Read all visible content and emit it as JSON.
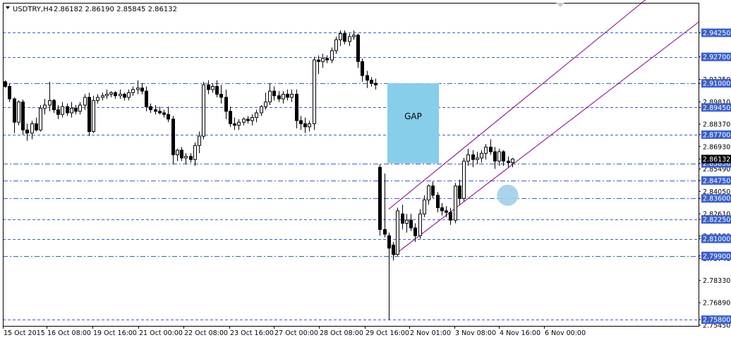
{
  "header": {
    "symbol": "USDTRY,H4",
    "ohlc": "2.86182 2.86190 2.85845 2.86132"
  },
  "chart_data": {
    "type": "candlestick",
    "ylim": [
      2.754,
      2.9536
    ],
    "y_tick_labels": [
      "2.94250",
      "2.92700",
      "2.91250",
      "2.91000",
      "2.89810",
      "2.89450",
      "2.88370",
      "2.87700",
      "2.86930",
      "2.86132",
      "2.85850",
      "2.85490",
      "2.84750",
      "2.84050",
      "2.83600",
      "2.82610",
      "2.82250",
      "2.81180",
      "2.81000",
      "2.79900",
      "2.79740",
      "2.78330",
      "2.76890",
      "2.75800",
      "2.75450"
    ],
    "x_tick_labels": [
      "15 Oct 2015",
      "16 Oct 08:00",
      "19 Oct 16:00",
      "21 Oct 00:00",
      "22 Oct 08:00",
      "23 Oct 16:00",
      "27 Oct 00:00",
      "28 Oct 08:00",
      "29 Oct 16:00",
      "2 Nov 01:00",
      "3 Nov 08:00",
      "4 Nov 16:00",
      "6 Nov 00:00"
    ],
    "current_price": 2.86132,
    "levels": [
      {
        "value": 2.9425,
        "label": "2.94250",
        "style": "dashed"
      },
      {
        "value": 2.927,
        "label": "2.92700",
        "style": "dashed"
      },
      {
        "value": 2.91,
        "label": "2.91000",
        "style": "dashdot"
      },
      {
        "value": 2.8945,
        "label": "2.89450",
        "style": "dashed"
      },
      {
        "value": 2.877,
        "label": "2.87700",
        "style": "dashed"
      },
      {
        "value": 2.8585,
        "label": "2.85850",
        "style": "dashdot"
      },
      {
        "value": 2.8475,
        "label": "2.84750",
        "style": "dashdot"
      },
      {
        "value": 2.836,
        "label": "2.83600",
        "style": "dashdot"
      },
      {
        "value": 2.8225,
        "label": "2.82250",
        "style": "dashed"
      },
      {
        "value": 2.81,
        "label": "2.81000",
        "style": "dashed"
      },
      {
        "value": 2.799,
        "label": "2.79900",
        "style": "dashdot"
      },
      {
        "value": 2.758,
        "label": "2.75800",
        "style": "dashed"
      }
    ],
    "gap": {
      "label": "GAP",
      "from": 2.8585,
      "to": 2.91
    },
    "candles": [
      {
        "o": 2.911,
        "h": 2.912,
        "l": 2.907,
        "c": 2.908
      },
      {
        "o": 2.908,
        "h": 2.91,
        "l": 2.898,
        "c": 2.9
      },
      {
        "o": 2.9,
        "h": 2.901,
        "l": 2.878,
        "c": 2.885
      },
      {
        "o": 2.885,
        "h": 2.899,
        "l": 2.883,
        "c": 2.898
      },
      {
        "o": 2.898,
        "h": 2.8995,
        "l": 2.877,
        "c": 2.88
      },
      {
        "o": 2.88,
        "h": 2.884,
        "l": 2.873,
        "c": 2.878
      },
      {
        "o": 2.878,
        "h": 2.886,
        "l": 2.874,
        "c": 2.884
      },
      {
        "o": 2.884,
        "h": 2.888,
        "l": 2.879,
        "c": 2.88
      },
      {
        "o": 2.88,
        "h": 2.896,
        "l": 2.879,
        "c": 2.894
      },
      {
        "o": 2.894,
        "h": 2.9,
        "l": 2.89,
        "c": 2.896
      },
      {
        "o": 2.896,
        "h": 2.911,
        "l": 2.892,
        "c": 2.899
      },
      {
        "o": 2.899,
        "h": 2.9,
        "l": 2.891,
        "c": 2.893
      },
      {
        "o": 2.893,
        "h": 2.896,
        "l": 2.887,
        "c": 2.89
      },
      {
        "o": 2.89,
        "h": 2.898,
        "l": 2.888,
        "c": 2.895
      },
      {
        "o": 2.895,
        "h": 2.897,
        "l": 2.889,
        "c": 2.891
      },
      {
        "o": 2.891,
        "h": 2.898,
        "l": 2.888,
        "c": 2.894
      },
      {
        "o": 2.894,
        "h": 2.896,
        "l": 2.89,
        "c": 2.892
      },
      {
        "o": 2.892,
        "h": 2.898,
        "l": 2.89,
        "c": 2.896
      },
      {
        "o": 2.896,
        "h": 2.903,
        "l": 2.893,
        "c": 2.901
      },
      {
        "o": 2.901,
        "h": 2.904,
        "l": 2.876,
        "c": 2.879
      },
      {
        "o": 2.879,
        "h": 2.902,
        "l": 2.878,
        "c": 2.899
      },
      {
        "o": 2.899,
        "h": 2.903,
        "l": 2.897,
        "c": 2.901
      },
      {
        "o": 2.901,
        "h": 2.904,
        "l": 2.899,
        "c": 2.902
      },
      {
        "o": 2.902,
        "h": 2.906,
        "l": 2.9,
        "c": 2.903
      },
      {
        "o": 2.903,
        "h": 2.905,
        "l": 2.901,
        "c": 2.904
      },
      {
        "o": 2.904,
        "h": 2.905,
        "l": 2.9,
        "c": 2.902
      },
      {
        "o": 2.902,
        "h": 2.906,
        "l": 2.9,
        "c": 2.903
      },
      {
        "o": 2.903,
        "h": 2.904,
        "l": 2.899,
        "c": 2.901
      },
      {
        "o": 2.901,
        "h": 2.906,
        "l": 2.899,
        "c": 2.904
      },
      {
        "o": 2.904,
        "h": 2.908,
        "l": 2.902,
        "c": 2.906
      },
      {
        "o": 2.906,
        "h": 2.912,
        "l": 2.903,
        "c": 2.907
      },
      {
        "o": 2.907,
        "h": 2.91,
        "l": 2.903,
        "c": 2.905
      },
      {
        "o": 2.905,
        "h": 2.908,
        "l": 2.892,
        "c": 2.895
      },
      {
        "o": 2.895,
        "h": 2.897,
        "l": 2.891,
        "c": 2.893
      },
      {
        "o": 2.893,
        "h": 2.896,
        "l": 2.89,
        "c": 2.892
      },
      {
        "o": 2.892,
        "h": 2.895,
        "l": 2.89,
        "c": 2.891
      },
      {
        "o": 2.891,
        "h": 2.893,
        "l": 2.888,
        "c": 2.89
      },
      {
        "o": 2.89,
        "h": 2.895,
        "l": 2.885,
        "c": 2.887
      },
      {
        "o": 2.887,
        "h": 2.889,
        "l": 2.858,
        "c": 2.864
      },
      {
        "o": 2.864,
        "h": 2.868,
        "l": 2.86,
        "c": 2.867
      },
      {
        "o": 2.867,
        "h": 2.869,
        "l": 2.86,
        "c": 2.862
      },
      {
        "o": 2.862,
        "h": 2.865,
        "l": 2.858,
        "c": 2.863
      },
      {
        "o": 2.863,
        "h": 2.865,
        "l": 2.859,
        "c": 2.861
      },
      {
        "o": 2.861,
        "h": 2.872,
        "l": 2.857,
        "c": 2.87
      },
      {
        "o": 2.87,
        "h": 2.879,
        "l": 2.865,
        "c": 2.876
      },
      {
        "o": 2.876,
        "h": 2.911,
        "l": 2.874,
        "c": 2.909
      },
      {
        "o": 2.909,
        "h": 2.912,
        "l": 2.903,
        "c": 2.906
      },
      {
        "o": 2.906,
        "h": 2.91,
        "l": 2.904,
        "c": 2.908
      },
      {
        "o": 2.908,
        "h": 2.912,
        "l": 2.901,
        "c": 2.903
      },
      {
        "o": 2.903,
        "h": 2.909,
        "l": 2.897,
        "c": 2.901
      },
      {
        "o": 2.901,
        "h": 2.906,
        "l": 2.887,
        "c": 2.892
      },
      {
        "o": 2.892,
        "h": 2.895,
        "l": 2.882,
        "c": 2.884
      },
      {
        "o": 2.884,
        "h": 2.888,
        "l": 2.88,
        "c": 2.883
      },
      {
        "o": 2.883,
        "h": 2.887,
        "l": 2.88,
        "c": 2.885
      },
      {
        "o": 2.885,
        "h": 2.888,
        "l": 2.883,
        "c": 2.887
      },
      {
        "o": 2.887,
        "h": 2.889,
        "l": 2.884,
        "c": 2.886
      },
      {
        "o": 2.886,
        "h": 2.89,
        "l": 2.883,
        "c": 2.888
      },
      {
        "o": 2.888,
        "h": 2.893,
        "l": 2.885,
        "c": 2.891
      },
      {
        "o": 2.891,
        "h": 2.896,
        "l": 2.889,
        "c": 2.895
      },
      {
        "o": 2.895,
        "h": 2.904,
        "l": 2.893,
        "c": 2.898
      },
      {
        "o": 2.898,
        "h": 2.91,
        "l": 2.896,
        "c": 2.905
      },
      {
        "o": 2.905,
        "h": 2.908,
        "l": 2.899,
        "c": 2.902
      },
      {
        "o": 2.902,
        "h": 2.905,
        "l": 2.898,
        "c": 2.9
      },
      {
        "o": 2.9,
        "h": 2.905,
        "l": 2.897,
        "c": 2.903
      },
      {
        "o": 2.903,
        "h": 2.906,
        "l": 2.899,
        "c": 2.901
      },
      {
        "o": 2.901,
        "h": 2.906,
        "l": 2.898,
        "c": 2.903
      },
      {
        "o": 2.903,
        "h": 2.906,
        "l": 2.881,
        "c": 2.886
      },
      {
        "o": 2.886,
        "h": 2.889,
        "l": 2.88,
        "c": 2.884
      },
      {
        "o": 2.884,
        "h": 2.888,
        "l": 2.878,
        "c": 2.882
      },
      {
        "o": 2.882,
        "h": 2.886,
        "l": 2.879,
        "c": 2.884
      },
      {
        "o": 2.884,
        "h": 2.927,
        "l": 2.88,
        "c": 2.925
      },
      {
        "o": 2.925,
        "h": 2.928,
        "l": 2.916,
        "c": 2.924
      },
      {
        "o": 2.924,
        "h": 2.929,
        "l": 2.92,
        "c": 2.926
      },
      {
        "o": 2.926,
        "h": 2.928,
        "l": 2.923,
        "c": 2.925
      },
      {
        "o": 2.925,
        "h": 2.933,
        "l": 2.923,
        "c": 2.931
      },
      {
        "o": 2.931,
        "h": 2.94,
        "l": 2.929,
        "c": 2.938
      },
      {
        "o": 2.938,
        "h": 2.944,
        "l": 2.934,
        "c": 2.942
      },
      {
        "o": 2.942,
        "h": 2.944,
        "l": 2.935,
        "c": 2.937
      },
      {
        "o": 2.937,
        "h": 2.942,
        "l": 2.934,
        "c": 2.94
      },
      {
        "o": 2.94,
        "h": 2.944,
        "l": 2.938,
        "c": 2.941
      },
      {
        "o": 2.941,
        "h": 2.942,
        "l": 2.92,
        "c": 2.924
      },
      {
        "o": 2.924,
        "h": 2.926,
        "l": 2.911,
        "c": 2.915
      },
      {
        "o": 2.915,
        "h": 2.918,
        "l": 2.907,
        "c": 2.912
      },
      {
        "o": 2.912,
        "h": 2.914,
        "l": 2.908,
        "c": 2.91
      },
      {
        "o": 2.91,
        "h": 2.913,
        "l": 2.906,
        "c": 2.909
      },
      {
        "o": 2.856,
        "h": 2.858,
        "l": 2.812,
        "c": 2.816
      },
      {
        "o": 2.816,
        "h": 2.852,
        "l": 2.811,
        "c": 2.813
      },
      {
        "o": 2.812,
        "h": 2.814,
        "l": 2.758,
        "c": 2.804
      },
      {
        "o": 2.806,
        "h": 2.808,
        "l": 2.796,
        "c": 2.8
      },
      {
        "o": 2.8,
        "h": 2.83,
        "l": 2.799,
        "c": 2.828
      },
      {
        "o": 2.826,
        "h": 2.832,
        "l": 2.816,
        "c": 2.82
      },
      {
        "o": 2.82,
        "h": 2.826,
        "l": 2.814,
        "c": 2.822
      },
      {
        "o": 2.822,
        "h": 2.826,
        "l": 2.815,
        "c": 2.817
      },
      {
        "o": 2.817,
        "h": 2.82,
        "l": 2.808,
        "c": 2.812
      },
      {
        "o": 2.812,
        "h": 2.829,
        "l": 2.81,
        "c": 2.826
      },
      {
        "o": 2.826,
        "h": 2.838,
        "l": 2.824,
        "c": 2.835
      },
      {
        "o": 2.835,
        "h": 2.845,
        "l": 2.832,
        "c": 2.844
      },
      {
        "o": 2.844,
        "h": 2.847,
        "l": 2.836,
        "c": 2.838
      },
      {
        "o": 2.838,
        "h": 2.84,
        "l": 2.827,
        "c": 2.83
      },
      {
        "o": 2.83,
        "h": 2.833,
        "l": 2.825,
        "c": 2.828
      },
      {
        "o": 2.828,
        "h": 2.831,
        "l": 2.824,
        "c": 2.827
      },
      {
        "o": 2.827,
        "h": 2.83,
        "l": 2.819,
        "c": 2.822
      },
      {
        "o": 2.822,
        "h": 2.846,
        "l": 2.82,
        "c": 2.844
      },
      {
        "o": 2.844,
        "h": 2.848,
        "l": 2.832,
        "c": 2.836
      },
      {
        "o": 2.836,
        "h": 2.862,
        "l": 2.834,
        "c": 2.86
      },
      {
        "o": 2.86,
        "h": 2.868,
        "l": 2.857,
        "c": 2.864
      },
      {
        "o": 2.864,
        "h": 2.867,
        "l": 2.856,
        "c": 2.861
      },
      {
        "o": 2.861,
        "h": 2.866,
        "l": 2.858,
        "c": 2.862
      },
      {
        "o": 2.862,
        "h": 2.867,
        "l": 2.859,
        "c": 2.865
      },
      {
        "o": 2.865,
        "h": 2.871,
        "l": 2.861,
        "c": 2.869
      },
      {
        "o": 2.869,
        "h": 2.874,
        "l": 2.864,
        "c": 2.866
      },
      {
        "o": 2.866,
        "h": 2.869,
        "l": 2.855,
        "c": 2.86
      },
      {
        "o": 2.86,
        "h": 2.868,
        "l": 2.857,
        "c": 2.866
      },
      {
        "o": 2.866,
        "h": 2.867,
        "l": 2.857,
        "c": 2.86
      },
      {
        "o": 2.86,
        "h": 2.863,
        "l": 2.856,
        "c": 2.859
      },
      {
        "o": 2.859,
        "h": 2.862,
        "l": 2.856,
        "c": 2.8613
      }
    ],
    "channel": {
      "upper": {
        "from": {
          "i": 87,
          "v": 2.829
        },
        "to": {
          "i": 135,
          "v": 2.94
        }
      },
      "lower": {
        "from": {
          "i": 88,
          "v": 2.799
        },
        "to": {
          "i": 135,
          "v": 2.901
        }
      }
    },
    "highlight_circle": {
      "i": 114,
      "v": 2.838
    },
    "colors": {
      "background": "#ffffff",
      "candle": "#000000",
      "grid_line": "#3a5fcd",
      "level_label_bg": "#3a5fcd",
      "current_price_bg": "#000000",
      "gap_fill": "#87ceeb",
      "channel": "#800080",
      "circle": "#9fd0e8"
    }
  }
}
